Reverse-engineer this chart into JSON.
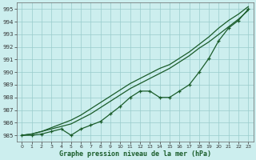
{
  "xlabel": "Graphe pression niveau de la mer (hPa)",
  "bg_color": "#cceeee",
  "grid_color": "#99cccc",
  "line_color": "#1a5c2a",
  "x_values": [
    0,
    1,
    2,
    3,
    4,
    5,
    6,
    7,
    8,
    9,
    10,
    11,
    12,
    13,
    14,
    15,
    16,
    17,
    18,
    19,
    20,
    21,
    22,
    23
  ],
  "ylim": [
    984.5,
    995.5
  ],
  "yticks": [
    985,
    986,
    987,
    988,
    989,
    990,
    991,
    992,
    993,
    994,
    995
  ],
  "line_smooth1": [
    985.0,
    985.1,
    985.3,
    985.5,
    985.7,
    985.9,
    986.3,
    986.7,
    987.2,
    987.7,
    988.2,
    988.7,
    989.1,
    989.5,
    989.9,
    990.3,
    990.8,
    991.3,
    991.9,
    992.4,
    993.0,
    993.6,
    994.2,
    994.9
  ],
  "line_smooth2": [
    985.0,
    985.1,
    985.3,
    985.6,
    985.9,
    986.2,
    986.6,
    987.1,
    987.6,
    988.1,
    988.6,
    989.1,
    989.5,
    989.9,
    990.3,
    990.6,
    991.1,
    991.6,
    992.2,
    992.8,
    993.5,
    994.1,
    994.6,
    995.2
  ],
  "line_markers": [
    985.0,
    985.0,
    985.1,
    985.3,
    985.5,
    985.0,
    985.5,
    985.8,
    986.1,
    986.7,
    987.3,
    988.0,
    988.5,
    988.5,
    988.0,
    988.0,
    988.5,
    989.0,
    990.0,
    991.1,
    992.5,
    993.5,
    994.1,
    995.0
  ]
}
